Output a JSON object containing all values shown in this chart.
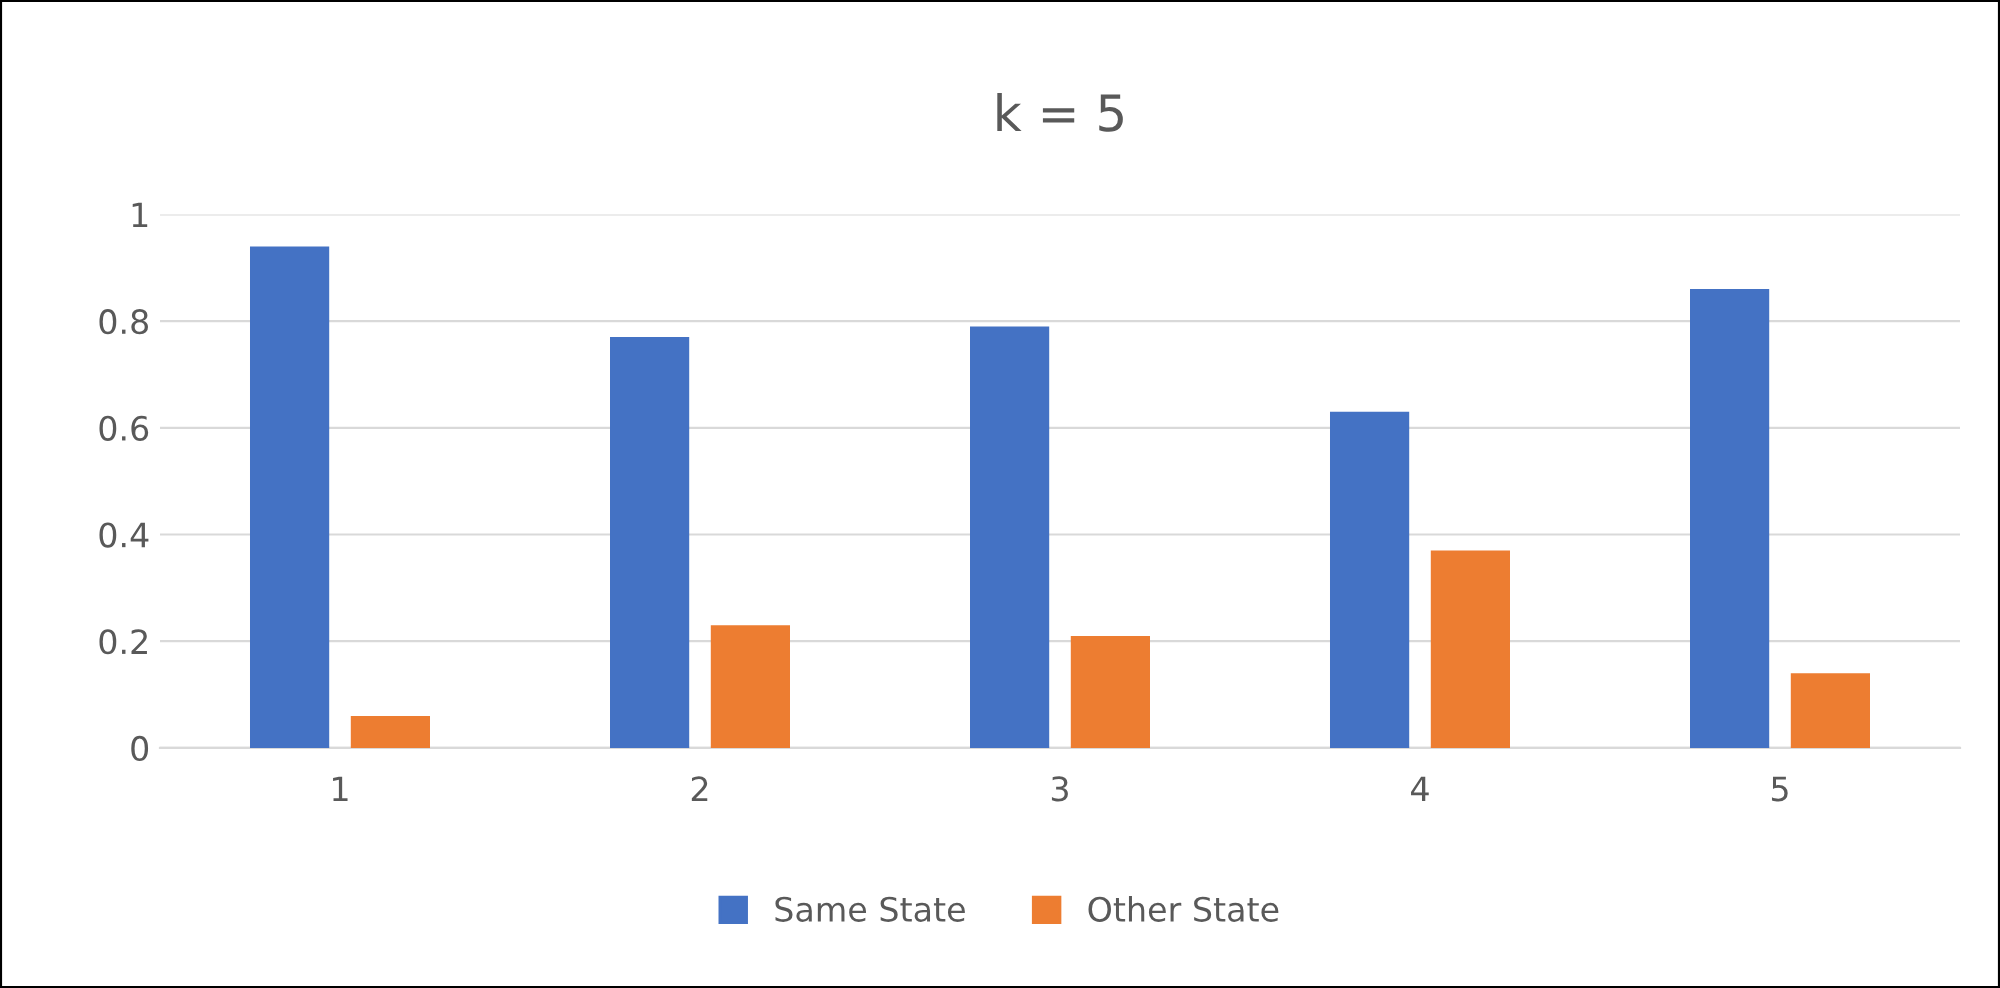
{
  "chart_data": {
    "type": "bar",
    "title": "k = 5",
    "categories": [
      "1",
      "2",
      "3",
      "4",
      "5"
    ],
    "series": [
      {
        "name": "Same State",
        "color": "#4472c4",
        "values": [
          0.94,
          0.77,
          0.79,
          0.63,
          0.86
        ]
      },
      {
        "name": "Other State",
        "color": "#ed7d31",
        "values": [
          0.06,
          0.23,
          0.21,
          0.37,
          0.14
        ]
      }
    ],
    "ylim": [
      0,
      1
    ],
    "yticks": [
      0,
      0.2,
      0.4,
      0.6,
      0.8,
      1
    ],
    "grid": "y",
    "legend": "bottom"
  }
}
